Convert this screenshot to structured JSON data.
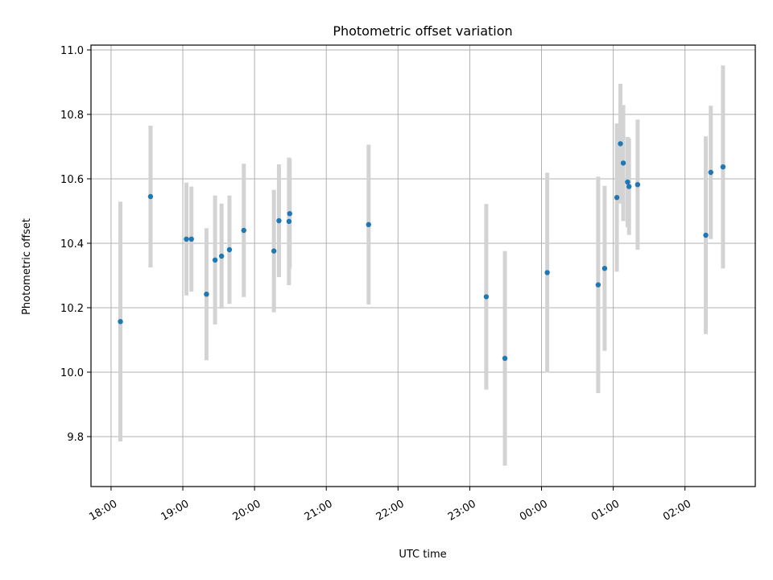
{
  "chart_data": {
    "type": "scatter",
    "title": "Photometric offset variation",
    "xlabel": "UTC time",
    "ylabel": "Photometric offset",
    "x_domain_hours": [
      17.72,
      26.98
    ],
    "ylim": [
      9.645,
      11.015
    ],
    "x_ticks": [
      {
        "label": "18:00",
        "hour": 18
      },
      {
        "label": "19:00",
        "hour": 19
      },
      {
        "label": "20:00",
        "hour": 20
      },
      {
        "label": "21:00",
        "hour": 21
      },
      {
        "label": "22:00",
        "hour": 22
      },
      {
        "label": "23:00",
        "hour": 23
      },
      {
        "label": "00:00",
        "hour": 24
      },
      {
        "label": "01:00",
        "hour": 25
      },
      {
        "label": "02:00",
        "hour": 26
      }
    ],
    "y_ticks": [
      {
        "label": "9.8",
        "value": 9.8
      },
      {
        "label": "10.0",
        "value": 10.0
      },
      {
        "label": "10.2",
        "value": 10.2
      },
      {
        "label": "10.4",
        "value": 10.4
      },
      {
        "label": "10.6",
        "value": 10.6
      },
      {
        "label": "10.8",
        "value": 10.8
      },
      {
        "label": "11.0",
        "value": 11.0
      }
    ],
    "grid": true,
    "point_color": "#1f77b4",
    "errorbar_color": "#d3d3d3",
    "points": [
      {
        "time": "18:08",
        "hour": 18.13,
        "y": 10.157,
        "err": 0.372
      },
      {
        "time": "18:33",
        "hour": 18.55,
        "y": 10.545,
        "err": 0.22
      },
      {
        "time": "19:03",
        "hour": 19.05,
        "y": 10.413,
        "err": 0.175
      },
      {
        "time": "19:07",
        "hour": 19.12,
        "y": 10.413,
        "err": 0.163
      },
      {
        "time": "19:20",
        "hour": 19.33,
        "y": 10.242,
        "err": 0.205
      },
      {
        "time": "19:27",
        "hour": 19.45,
        "y": 10.348,
        "err": 0.2
      },
      {
        "time": "19:32",
        "hour": 19.54,
        "y": 10.36,
        "err": 0.163
      },
      {
        "time": "19:39",
        "hour": 19.65,
        "y": 10.38,
        "err": 0.168
      },
      {
        "time": "19:51",
        "hour": 19.85,
        "y": 10.44,
        "err": 0.207
      },
      {
        "time": "20:16",
        "hour": 20.27,
        "y": 10.376,
        "err": 0.19
      },
      {
        "time": "20:20",
        "hour": 20.34,
        "y": 10.47,
        "err": 0.175
      },
      {
        "time": "20:29",
        "hour": 20.48,
        "y": 10.468,
        "err": 0.198
      },
      {
        "time": "20:29",
        "hour": 20.49,
        "y": 10.492,
        "err": 0.17
      },
      {
        "time": "21:35",
        "hour": 21.59,
        "y": 10.458,
        "err": 0.248
      },
      {
        "time": "23:14",
        "hour": 23.23,
        "y": 10.234,
        "err": 0.288
      },
      {
        "time": "23:29",
        "hour": 23.49,
        "y": 10.043,
        "err": 0.333
      },
      {
        "time": "00:05",
        "hour": 24.08,
        "y": 10.309,
        "err": 0.31
      },
      {
        "time": "00:47",
        "hour": 24.79,
        "y": 10.271,
        "err": 0.336
      },
      {
        "time": "00:52",
        "hour": 24.88,
        "y": 10.322,
        "err": 0.256
      },
      {
        "time": "01:03",
        "hour": 25.05,
        "y": 10.542,
        "err": 0.23
      },
      {
        "time": "01:06",
        "hour": 25.1,
        "y": 10.709,
        "err": 0.186
      },
      {
        "time": "01:08",
        "hour": 25.14,
        "y": 10.649,
        "err": 0.18
      },
      {
        "time": "01:12",
        "hour": 25.2,
        "y": 10.59,
        "err": 0.14
      },
      {
        "time": "01:13",
        "hour": 25.22,
        "y": 10.576,
        "err": 0.15
      },
      {
        "time": "01:20",
        "hour": 25.34,
        "y": 10.582,
        "err": 0.202
      },
      {
        "time": "02:17",
        "hour": 26.29,
        "y": 10.425,
        "err": 0.307
      },
      {
        "time": "02:21",
        "hour": 26.36,
        "y": 10.62,
        "err": 0.207
      },
      {
        "time": "02:31",
        "hour": 26.53,
        "y": 10.637,
        "err": 0.315
      }
    ]
  }
}
